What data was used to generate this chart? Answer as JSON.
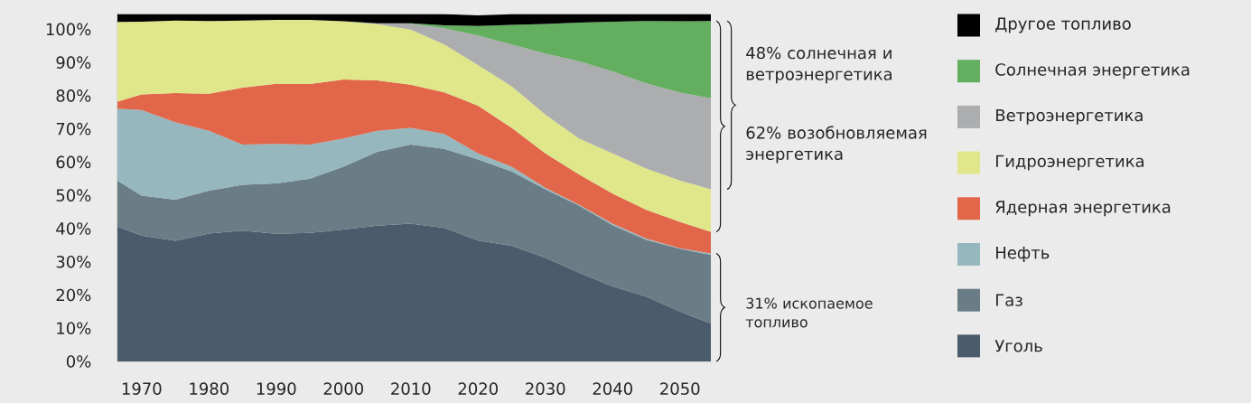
{
  "chart_data": {
    "type": "area",
    "stacked": true,
    "legend": "right",
    "x": [
      1966.4,
      1970,
      1975,
      1980,
      1985,
      1990,
      1995,
      2000,
      2005,
      2010,
      2015,
      2020,
      2025,
      2030,
      2035,
      2040,
      2045,
      2050,
      2054.6
    ],
    "xlim": [
      1966.4,
      2054.6
    ],
    "xticks": [
      1970,
      1980,
      1990,
      2000,
      2010,
      2020,
      2030,
      2040,
      2050
    ],
    "ylim": [
      0,
      105
    ],
    "yticks": [
      {
        "value": 0,
        "label": "0%"
      },
      {
        "value": 10,
        "label": "10%"
      },
      {
        "value": 20,
        "label": "20%"
      },
      {
        "value": 30,
        "label": "30%"
      },
      {
        "value": 40,
        "label": "40%"
      },
      {
        "value": 50,
        "label": "50%"
      },
      {
        "value": 60,
        "label": "60%"
      },
      {
        "value": 70,
        "label": "70%"
      },
      {
        "value": 80,
        "label": "80%"
      },
      {
        "value": 90,
        "label": "90%"
      },
      {
        "value": 100,
        "label": "100%"
      }
    ],
    "series": [
      {
        "name": "Уголь",
        "color": "#4a5b6b",
        "values": [
          40.6,
          37.9,
          36.3,
          38.5,
          39.4,
          38.4,
          38.7,
          39.7,
          40.9,
          41.5,
          40.2,
          36.4,
          34.8,
          31.2,
          26.7,
          22.6,
          19.5,
          15.0,
          11.4
        ]
      },
      {
        "name": "Газ",
        "color": "#6a7c86",
        "values": [
          13.8,
          12.0,
          12.4,
          12.9,
          13.8,
          15.2,
          16.3,
          18.9,
          22.2,
          23.8,
          23.8,
          24.4,
          22.4,
          20.6,
          20.2,
          18.4,
          17.1,
          18.9,
          20.7
        ]
      },
      {
        "name": "Нефть",
        "color": "#95b7bd",
        "values": [
          21.7,
          25.8,
          23.3,
          18.0,
          12.1,
          11.9,
          10.3,
          8.5,
          6.3,
          5.0,
          4.5,
          1.8,
          1.4,
          0.5,
          0.3,
          0.5,
          0.4,
          0.2,
          0.4
        ]
      },
      {
        "name": "Ядерная энергетика",
        "color": "#e2664a",
        "values": [
          2.1,
          4.7,
          8.8,
          11.2,
          17.1,
          18.1,
          18.2,
          17.8,
          15.2,
          13.0,
          12.5,
          14.4,
          11.7,
          10.3,
          9.1,
          9.0,
          8.6,
          7.9,
          6.5
        ]
      },
      {
        "name": "Гидроэнергетика",
        "color": "#e0e78a",
        "values": [
          24.0,
          21.9,
          21.8,
          21.9,
          20.2,
          19.2,
          19.3,
          17.5,
          16.9,
          16.6,
          14.4,
          12.2,
          12.5,
          11.7,
          10.8,
          12.1,
          12.5,
          12.5,
          12.8
        ]
      },
      {
        "name": "Ветроэнергетика",
        "color": "#acadaf",
        "values": [
          0,
          0,
          0,
          0,
          0,
          0,
          0,
          0,
          0.3,
          1.8,
          4.9,
          8.9,
          12.6,
          18.4,
          23.3,
          24.7,
          25.6,
          26.5,
          27.4
        ]
      },
      {
        "name": "Солнечная энергетика",
        "color": "#63ae5f",
        "values": [
          0,
          0,
          0,
          0,
          0,
          0,
          0,
          0,
          0,
          0.1,
          0.9,
          2.9,
          5.9,
          8.9,
          11.6,
          15.0,
          18.8,
          21.4,
          23.3
        ]
      },
      {
        "name": "Другое топливо",
        "color": "#000000",
        "values": [
          2.3,
          2.2,
          1.9,
          2.0,
          1.9,
          1.7,
          1.7,
          2.1,
          2.7,
          2.7,
          3.3,
          3.2,
          3.2,
          2.9,
          2.5,
          2.2,
          2.0,
          2.1,
          2.0
        ]
      }
    ],
    "annotations": [
      "48% солнечная и ветроэнергетика",
      "62% возобновляемая энергетика",
      "31% ископаемое топливо"
    ]
  }
}
